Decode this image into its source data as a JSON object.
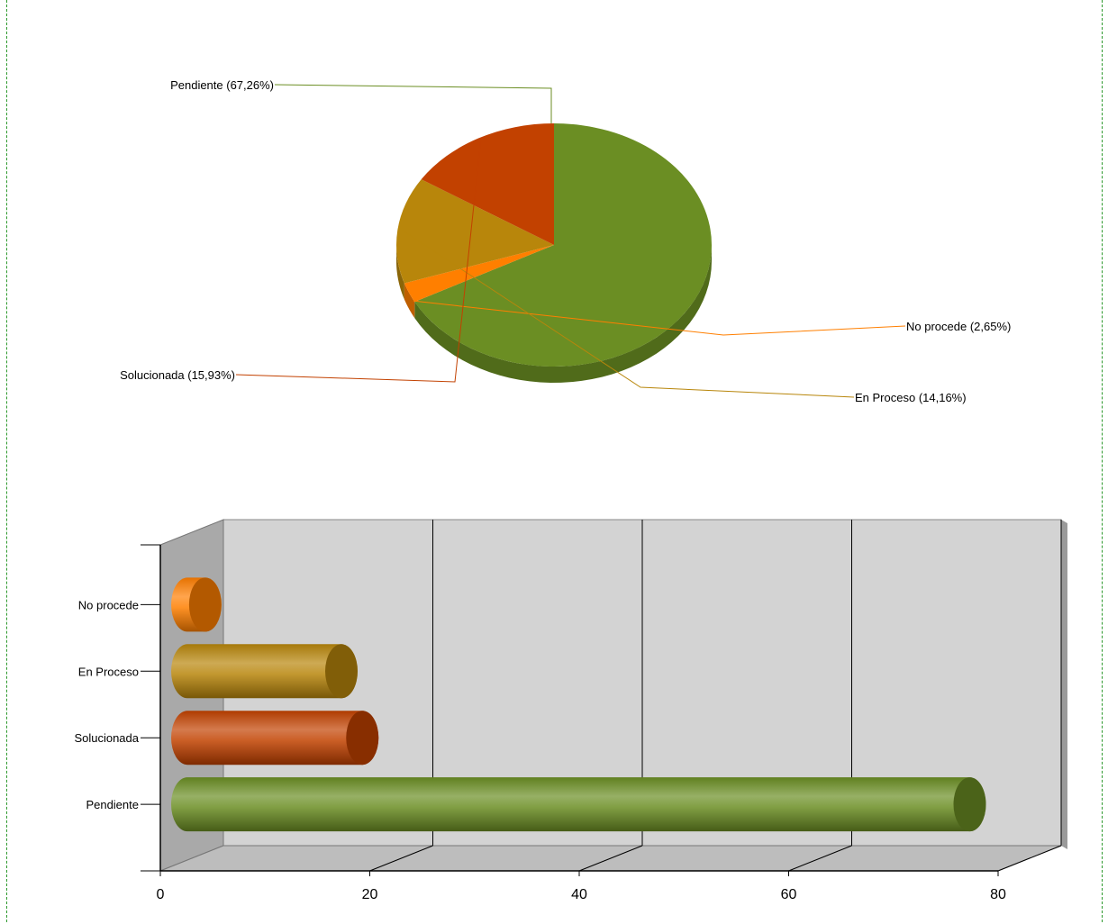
{
  "colors": {
    "frame_border": "#2e9a2e",
    "Pendiente": "#6b8e23",
    "Solucionada": "#c24100",
    "En Proceso": "#b8860b",
    "No procede": "#ff7f00",
    "plot_back": "#d3d3d3",
    "plot_wall": "#a9a9a9",
    "plot_floor": "#bdbdbd"
  },
  "chart_data": [
    {
      "type": "pie",
      "slices": [
        {
          "label": "Pendiente",
          "value": 67.26,
          "text": "Pendiente (67,26%)"
        },
        {
          "label": "No procede",
          "value": 2.65,
          "text": "No procede (2,65%)"
        },
        {
          "label": "En Proceso",
          "value": 14.16,
          "text": "En Proceso (14,16%)"
        },
        {
          "label": "Solucionada",
          "value": 15.93,
          "text": "Solucionada (15,93%)"
        }
      ]
    },
    {
      "type": "bar",
      "orientation": "horizontal",
      "categories": [
        "Pendiente",
        "Solucionada",
        "En Proceso",
        "No procede"
      ],
      "values": [
        76,
        18,
        16,
        3
      ],
      "xlim": [
        0,
        80
      ],
      "xticks": [
        "0",
        "20",
        "40",
        "60",
        "80"
      ],
      "grid": true
    }
  ]
}
